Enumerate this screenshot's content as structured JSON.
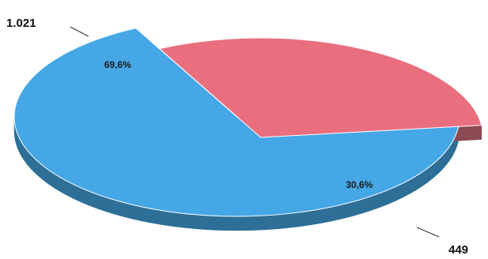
{
  "chart_data": {
    "type": "pie",
    "style": "3d-exploded",
    "slices": [
      {
        "value": 1021,
        "value_label": "1.021",
        "percent_label": "69,6%",
        "color": "#45a7e6",
        "side_color": "#2d6f97"
      },
      {
        "value": 449,
        "value_label": "449",
        "percent_label": "30,6%",
        "color": "#e96f7f",
        "side_color": "#8c4a52"
      }
    ]
  }
}
